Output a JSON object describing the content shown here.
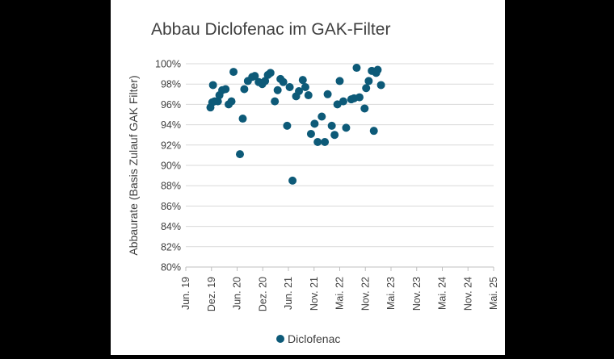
{
  "chart_data": {
    "type": "scatter",
    "title": "Abbau Diclofenac im GAK-Filter",
    "ylabel": "Abbaurate (Basis Zulauf GAK Filter)",
    "xlabel": "",
    "x_tick_labels": [
      "Jun. 19",
      "Dez. 19",
      "Jun. 20",
      "Dez. 20",
      "Jun. 21",
      "Nov. 21",
      "Mai. 22",
      "Nov. 22",
      "Mai. 23",
      "Nov. 23",
      "Mai. 24",
      "Nov. 24",
      "Mai. 25"
    ],
    "y_tick_labels": [
      "80%",
      "82%",
      "84%",
      "86%",
      "88%",
      "90%",
      "92%",
      "94%",
      "96%",
      "98%",
      "100%"
    ],
    "ylim": [
      80,
      100
    ],
    "grid": "horizontal",
    "legend": "bottom-center",
    "colors": {
      "series": "#0d5a78",
      "grid": "#d9d9d9",
      "text": "#404040"
    },
    "series": [
      {
        "name": "Diclofenac",
        "points": [
          [
            0.96,
            95.7
          ],
          [
            1.03,
            96.2
          ],
          [
            1.06,
            97.9
          ],
          [
            1.12,
            96.3
          ],
          [
            1.25,
            96.3
          ],
          [
            1.31,
            96.9
          ],
          [
            1.42,
            97.4
          ],
          [
            1.55,
            97.5
          ],
          [
            1.67,
            96.0
          ],
          [
            1.78,
            96.3
          ],
          [
            1.86,
            99.2
          ],
          [
            2.11,
            91.1
          ],
          [
            2.22,
            94.6
          ],
          [
            2.28,
            97.5
          ],
          [
            2.42,
            98.3
          ],
          [
            2.59,
            98.7
          ],
          [
            2.69,
            98.8
          ],
          [
            2.84,
            98.2
          ],
          [
            2.98,
            98.0
          ],
          [
            3.09,
            98.3
          ],
          [
            3.2,
            98.9
          ],
          [
            3.3,
            99.1
          ],
          [
            3.47,
            96.3
          ],
          [
            3.58,
            97.4
          ],
          [
            3.69,
            98.5
          ],
          [
            3.8,
            98.2
          ],
          [
            3.95,
            93.9
          ],
          [
            4.05,
            97.7
          ],
          [
            4.16,
            88.5
          ],
          [
            4.3,
            96.8
          ],
          [
            4.41,
            97.3
          ],
          [
            4.56,
            98.4
          ],
          [
            4.66,
            97.7
          ],
          [
            4.78,
            96.9
          ],
          [
            4.88,
            93.1
          ],
          [
            5.02,
            94.1
          ],
          [
            5.14,
            92.3
          ],
          [
            5.3,
            94.8
          ],
          [
            5.42,
            92.3
          ],
          [
            5.53,
            97.0
          ],
          [
            5.69,
            93.9
          ],
          [
            5.8,
            93.0
          ],
          [
            5.91,
            96.0
          ],
          [
            6.0,
            98.3
          ],
          [
            6.14,
            96.3
          ],
          [
            6.25,
            93.7
          ],
          [
            6.45,
            96.5
          ],
          [
            6.56,
            96.6
          ],
          [
            6.66,
            99.6
          ],
          [
            6.77,
            96.7
          ],
          [
            6.97,
            95.6
          ],
          [
            7.03,
            97.6
          ],
          [
            7.13,
            98.3
          ],
          [
            7.25,
            99.3
          ],
          [
            7.33,
            93.4
          ],
          [
            7.42,
            99.1
          ],
          [
            7.48,
            99.4
          ],
          [
            7.61,
            97.9
          ]
        ]
      }
    ]
  }
}
